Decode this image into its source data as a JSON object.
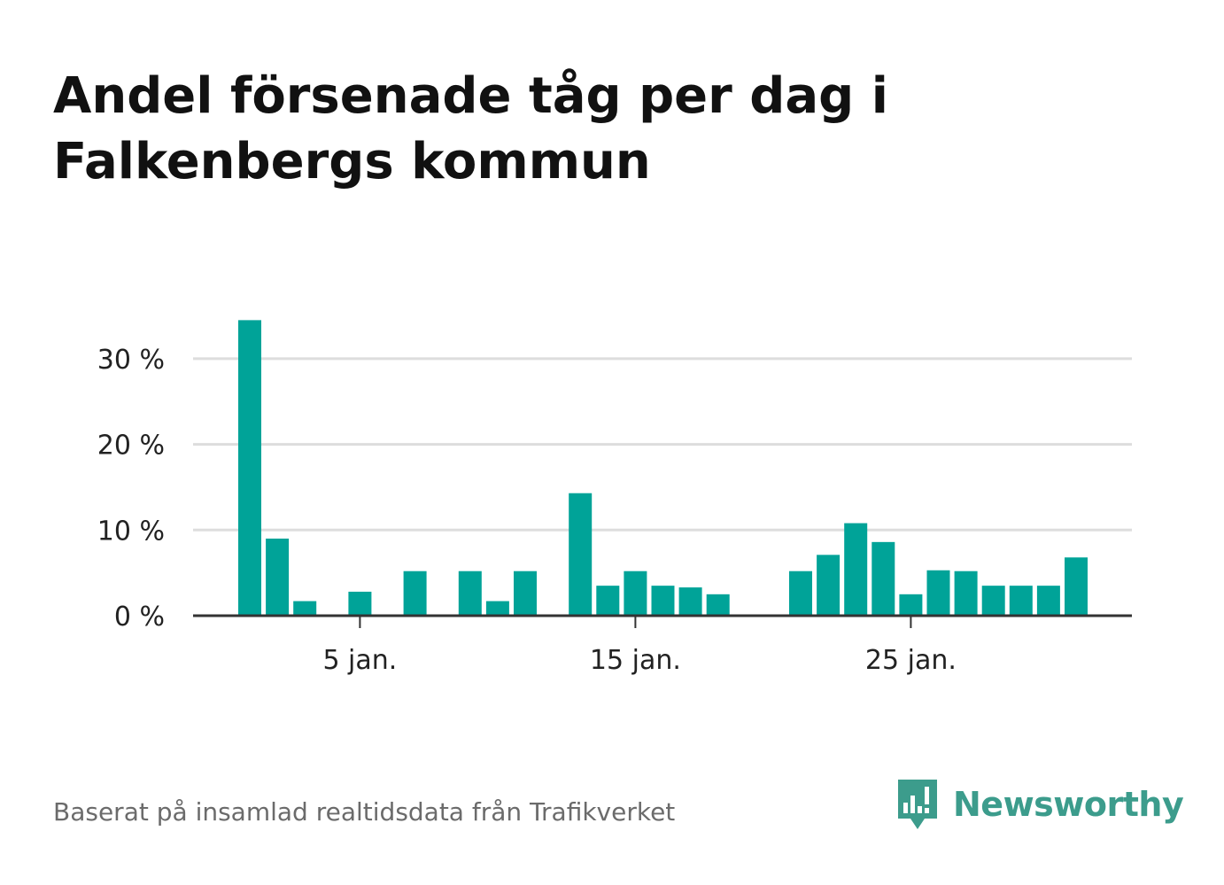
{
  "title": "Andel försenade tåg per dag i Falkenbergs kommun",
  "footer": {
    "source": "Baserat på insamlad realtidsdata från Trafikverket",
    "logo_text": "Newsworthy"
  },
  "colors": {
    "bar": "#00a398",
    "grid": "#dddddd",
    "axis": "#333333",
    "logo": "#3c9c8c"
  },
  "chart_data": {
    "type": "bar",
    "title": "Andel försenade tåg per dag i Falkenbergs kommun",
    "xlabel": "",
    "ylabel": "",
    "x": [
      1,
      2,
      3,
      4,
      5,
      6,
      7,
      8,
      9,
      10,
      11,
      12,
      13,
      14,
      15,
      16,
      17,
      18,
      19,
      20,
      21,
      22,
      23,
      24,
      25,
      26,
      27,
      28,
      29,
      30,
      31
    ],
    "values": [
      34.5,
      9,
      1.7,
      0,
      2.8,
      0,
      5.2,
      0,
      5.2,
      1.7,
      5.2,
      0,
      14.3,
      3.5,
      5.2,
      3.5,
      3.3,
      2.5,
      0,
      0,
      5.2,
      7.1,
      10.8,
      8.6,
      2.5,
      5.3,
      5.2,
      3.5,
      3.5,
      3.5,
      6.8
    ],
    "ylim": [
      0,
      35
    ],
    "yticks": [
      {
        "value": 0,
        "label": "0 %"
      },
      {
        "value": 10,
        "label": "10 %"
      },
      {
        "value": 20,
        "label": "20 %"
      },
      {
        "value": 30,
        "label": "30 %"
      }
    ],
    "xticks": [
      {
        "value": 5,
        "label": "5 jan."
      },
      {
        "value": 15,
        "label": "15 jan."
      },
      {
        "value": 25,
        "label": "25 jan."
      }
    ],
    "grid": true,
    "legend": "none"
  }
}
